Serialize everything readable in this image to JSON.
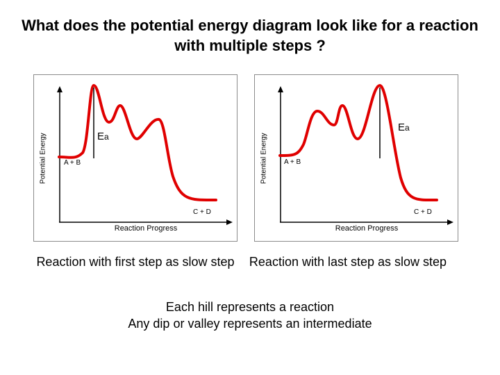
{
  "title": "What does the potential energy diagram look like for a reaction with multiple steps ?",
  "diagrams": [
    {
      "y_axis_label": "Potential Energy",
      "x_axis_label": "Reaction Progress",
      "reactant_label": "A + B",
      "product_label": "C + D",
      "ea_main": "E",
      "ea_sub": "a",
      "curve_color": "#e00000",
      "caption": "Reaction with first step as slow step"
    },
    {
      "y_axis_label": "Potential Energy",
      "x_axis_label": "Reaction Progress",
      "reactant_label": "A + B",
      "product_label": "C + D",
      "ea_main": "E",
      "ea_sub": "a",
      "curve_color": "#e00000",
      "caption": "Reaction with last step as slow step"
    }
  ],
  "notes": [
    "Each hill represents a reaction",
    "Any dip or valley represents an intermediate"
  ]
}
